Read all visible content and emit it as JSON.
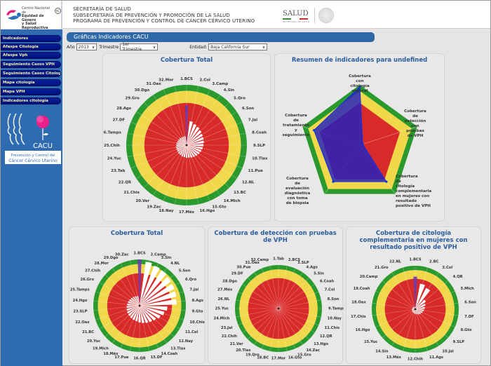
{
  "header": {
    "org_logo_lines": [
      "Centro Nacional de",
      "Equidad de Género",
      "y Salud Reproductiva"
    ],
    "org_badge": "AC",
    "lines": [
      "SECRETARÍA DE SALUD",
      "SUBSECRETARÍA DE PREVENCIÓN Y PROMOCIÓN DE LA SALUD",
      "PROGRAMA DE PREVENCIÓN Y CONTROL DE CÁNCER CÉRVICO UTERINO"
    ],
    "salud_logo": "SALUD",
    "salud_sub": "SECRETARÍA DE SALUD"
  },
  "sidebar": {
    "items": [
      {
        "label": "Indicadores"
      },
      {
        "label": "Afaspe Citología"
      },
      {
        "label": "Afaspe Vph"
      },
      {
        "label": "Seguimiento Casos VPH"
      },
      {
        "label": "Seguimiento Casos Citología"
      },
      {
        "label": "Mapa citología"
      },
      {
        "label": "Mapa VPH"
      },
      {
        "label": "Indicadores citología"
      }
    ],
    "cacu_logo": {
      "title": "CACU",
      "line1": "Prevención y Control del",
      "line2": "Cáncer Cérvico Uterino"
    }
  },
  "main": {
    "title": "Gráficas Indicadores CACU",
    "filters": {
      "year_label": "Año",
      "year_value": "2013",
      "quarter_label": "Trimestre",
      "quarter_value": "1er Trimestre",
      "entity_label": "Entidad:",
      "entity_value": "Baja California Sur"
    }
  },
  "colors": {
    "green": "#2a9a2e",
    "yellow": "#f0d84a",
    "red": "#d92a2a",
    "blue": "#2020c0",
    "purple": "#6a3cb0",
    "title_blue": "#2a5e9e",
    "sidebar_blue": "#2e6bb0",
    "nav_blue": "#0a1f9a"
  },
  "chart_data": [
    {
      "id": "cobertura-total-top",
      "type": "polar-bar",
      "title": "Cobertura Total",
      "bands": [
        {
          "label": "red",
          "from": 0,
          "to": 70
        },
        {
          "label": "yellow",
          "from": 70,
          "to": 90
        },
        {
          "label": "green",
          "from": 90,
          "to": 100
        }
      ],
      "ylim": [
        0,
        100
      ],
      "highlight_index": 0,
      "categories": [
        "1.BCS",
        "2.Col",
        "3.Camp",
        "4.Sin",
        "5.Qro",
        "6.Son",
        "7.Jal",
        "8.Coah",
        "9.SLP",
        "10.Tlax",
        "11.Pue",
        "12.NL",
        "13.BC",
        "14.Mich",
        "15.Gto",
        "16.Hgo",
        "17.Méx",
        "18.Nay",
        "19.Zac",
        "20.Ver",
        "21.Chis",
        "22.QR",
        "23.Tab",
        "24.Yuc",
        "25.Chih",
        "26.Tamps",
        "27.DF",
        "28.Ags",
        "29.Gro",
        "30.Dgo",
        "31.Oax",
        "32.Mor"
      ],
      "values": [
        66,
        40,
        37,
        35,
        33,
        31,
        30,
        29,
        28,
        27,
        26,
        25,
        24,
        23,
        22,
        21,
        21,
        20,
        20,
        19,
        19,
        18,
        18,
        18,
        17,
        17,
        16,
        16,
        16,
        15,
        15,
        15
      ]
    },
    {
      "id": "resumen-indicadores",
      "type": "radar",
      "title": "Resumen de indicadores para undefined",
      "bands": [
        {
          "label": "red",
          "from": 0,
          "to": 70
        },
        {
          "label": "yellow",
          "from": 70,
          "to": 90
        },
        {
          "label": "green",
          "from": 90,
          "to": 100
        }
      ],
      "ylim": [
        0,
        100
      ],
      "categories": [
        "Cobertura con citología vaginal",
        "Cobertura de detección con pruebas de VPH",
        "Cobertura de citología complementaria en mujeres con resultado positivo de VPH",
        "Cobertura de evaluación diagnóstica con toma de biopsia",
        "Cobertura de tratamiento y seguimiento"
      ],
      "series": [
        {
          "name": "Entidad",
          "values": [
            97,
            5,
            75,
            75,
            80
          ]
        }
      ]
    },
    {
      "id": "cobertura-total-bottom",
      "type": "polar-bar",
      "title": "Cobertura Total",
      "bands": [
        {
          "label": "red",
          "from": 0,
          "to": 70
        },
        {
          "label": "yellow",
          "from": 70,
          "to": 90
        },
        {
          "label": "green",
          "from": 90,
          "to": 100
        }
      ],
      "ylim": [
        0,
        100
      ],
      "highlight_index": 0,
      "categories": [
        "1.BCS",
        "2.Camp",
        "3.Sin",
        "4.NL",
        "5.Son",
        "6.Qro",
        "7.Jal",
        "8.Ags",
        "9.Gto",
        "10.Chis",
        "11.Col",
        "12.Nay",
        "13.Tlax",
        "14.Coah",
        "15.DF",
        "16.QR",
        "17.Pue",
        "18.Méx",
        "19.Mich",
        "20.Yuc",
        "21.BC",
        "22.Oax",
        "23.SLP",
        "24.Hgo",
        "25.Tamps",
        "26.Gro",
        "27.Chih",
        "28.Mor",
        "29.Dgo",
        "30.Zac"
      ],
      "values": [
        100,
        96,
        92,
        90,
        86,
        84,
        82,
        80,
        60,
        55,
        50,
        45,
        42,
        40,
        38,
        36,
        34,
        33,
        32,
        31,
        30,
        29,
        28,
        27,
        26,
        25,
        24,
        23,
        22,
        21
      ]
    },
    {
      "id": "cobertura-deteccion-vph",
      "type": "polar-bar",
      "title": "Cobertura de detección con pruebas de VPH",
      "bands": [
        {
          "label": "red",
          "from": 0,
          "to": 70
        },
        {
          "label": "yellow",
          "from": 70,
          "to": 90
        },
        {
          "label": "green",
          "from": 90,
          "to": 100
        }
      ],
      "ylim": [
        0,
        100
      ],
      "highlight_index": 0,
      "categories": [
        "1.Tab",
        "2.BCS",
        "3.SLP",
        "4.Ags",
        "5.Sin",
        "6.Coah",
        "7.Col",
        "8.Son",
        "9.Tamps",
        "10.Nay",
        "11.Chis",
        "12.QR",
        "13.Hgo",
        "14.Zac",
        "15.Gro",
        "16.Gto",
        "17.Mor",
        "18.BC",
        "19.Qro",
        "20.Tlax",
        "21.Ver",
        "22.Chih",
        "23.Jal",
        "24.Mich",
        "25.Yuc",
        "26.NL",
        "27.Méx",
        "28.Dgo",
        "29.DF",
        "30.Pue",
        "31.Oax",
        "32.Camp"
      ],
      "values": [
        5,
        4,
        3,
        3,
        2,
        2,
        2,
        2,
        2,
        2,
        1,
        1,
        1,
        1,
        1,
        1,
        1,
        1,
        1,
        1,
        1,
        1,
        1,
        1,
        1,
        1,
        1,
        1,
        1,
        1,
        1,
        1
      ]
    },
    {
      "id": "cobertura-citologia-complementaria",
      "type": "polar-bar",
      "title": "Cobertura de citología complementaria en mujeres con resultado positivo de VPH",
      "bands": [
        {
          "label": "red",
          "from": 0,
          "to": 70
        },
        {
          "label": "yellow",
          "from": 70,
          "to": 90
        },
        {
          "label": "green",
          "from": 90,
          "to": 100
        }
      ],
      "ylim": [
        0,
        100
      ],
      "highlight_index": 0,
      "categories": [
        "1.BCS",
        "2.BC",
        "3.Col",
        "4.QR",
        "5.Mich",
        "6.Son",
        "7.DF",
        "8.Gto",
        "9.SLP",
        "10.Jal",
        "11.Ags",
        "12.Chih",
        "13.Méx",
        "14.Sin",
        "15.Yuc",
        "16.Hgo",
        "17.Chis",
        "18.Oax",
        "19.Coah",
        "20.Camp",
        "21.Gro",
        "22.NL"
      ],
      "values": [
        75,
        60,
        55,
        30,
        25,
        22,
        20,
        18,
        16,
        14,
        12,
        11,
        10,
        9,
        9,
        8,
        8,
        7,
        7,
        6,
        6,
        5
      ]
    }
  ]
}
